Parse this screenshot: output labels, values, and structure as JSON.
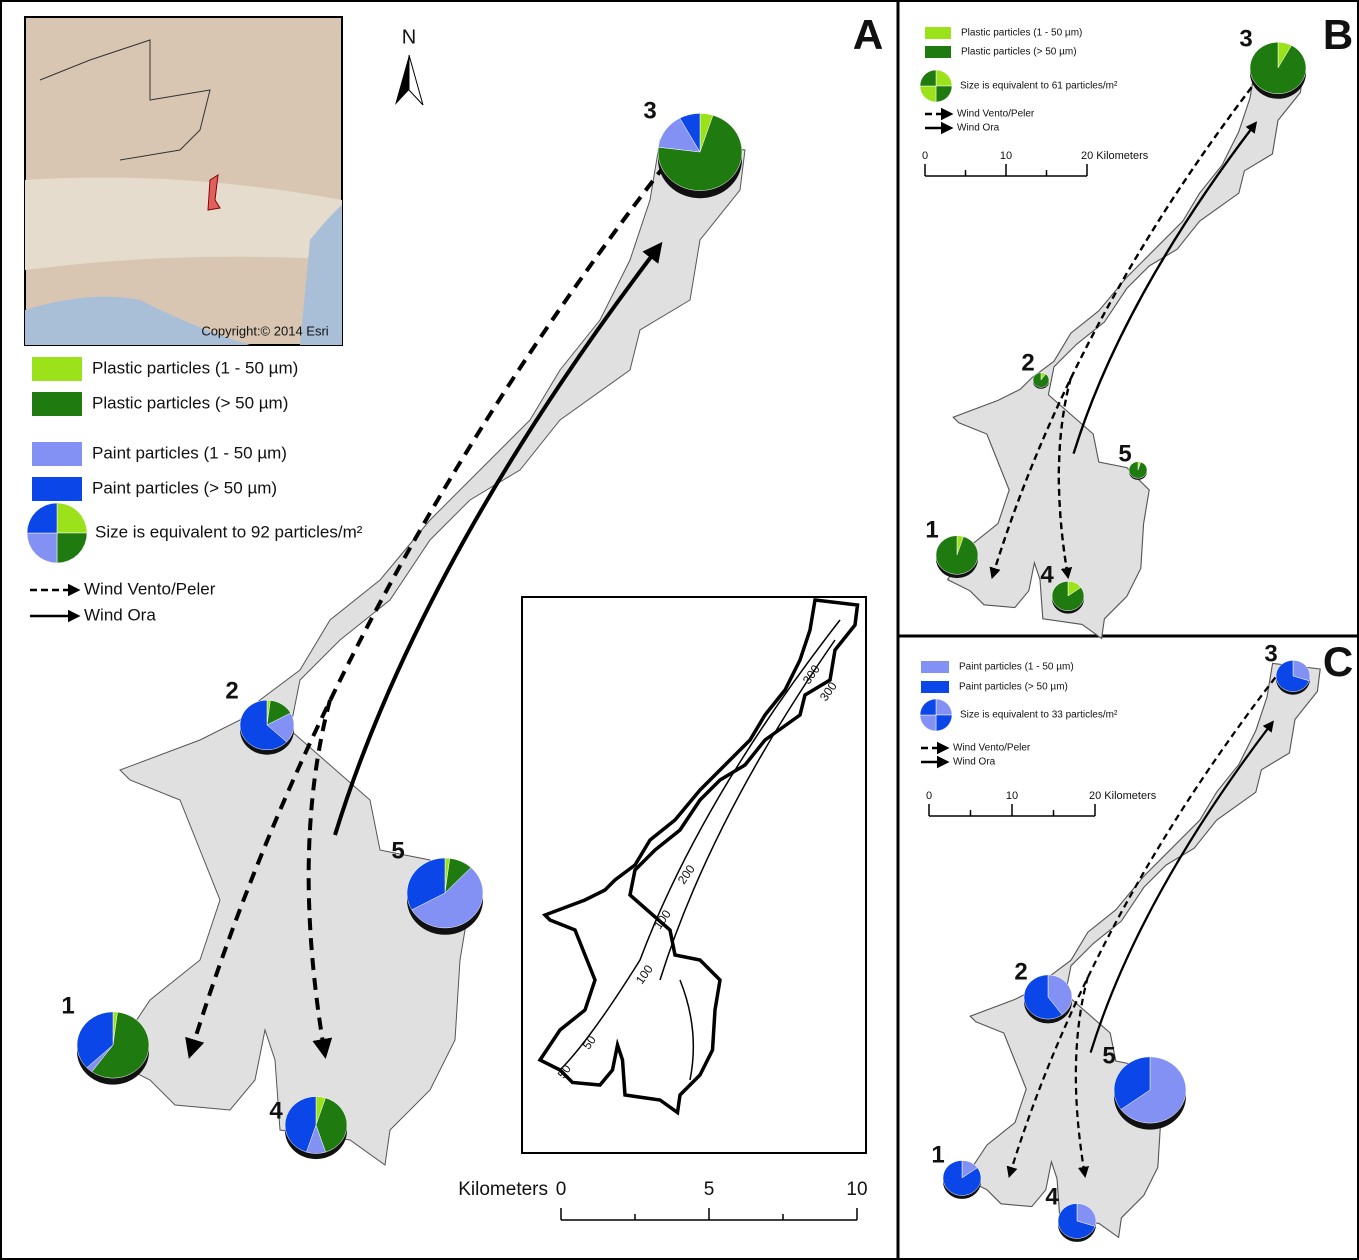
{
  "panel_a": {
    "letter": "A",
    "north": "N",
    "inset_copyright": "Copyright:© 2014 Esri",
    "legend": [
      {
        "label": "Plastic particles (1 - 50 µm)",
        "color": "#9be21a"
      },
      {
        "label": "Plastic particles (> 50 µm)",
        "color": "#1f7a10"
      },
      {
        "label": "Paint particles (1 - 50 µm)",
        "color": "#8391f5"
      },
      {
        "label": "Paint particles (> 50 µm)",
        "color": "#0b47e8"
      }
    ],
    "size_note": "Size is equivalent to 92 particles/m²",
    "wind": [
      "Wind Vento/Peler",
      "Wind Ora"
    ],
    "sites": [
      {
        "label": "1",
        "values": [
          2,
          58,
          3,
          37
        ]
      },
      {
        "label": "2",
        "values": [
          2,
          15,
          20,
          63
        ]
      },
      {
        "label": "3",
        "values": [
          5,
          72,
          15,
          8
        ]
      },
      {
        "label": "4",
        "values": [
          5,
          40,
          10,
          45
        ]
      },
      {
        "label": "5",
        "values": [
          2,
          10,
          55,
          33
        ]
      }
    ],
    "scale_title": "Kilometers",
    "scale_ticks": [
      "0",
      "5",
      "10"
    ],
    "contours": [
      "300",
      "300",
      "200",
      "100",
      "100",
      "50",
      "50"
    ]
  },
  "panel_b": {
    "letter": "B",
    "legend": [
      {
        "label": "Plastic particles (1 - 50 µm)",
        "color": "#9be21a"
      },
      {
        "label": "Plastic particles (> 50 µm)",
        "color": "#1f7a10"
      }
    ],
    "size_note": "Size is equivalent to 61 particles/m²",
    "wind": [
      "Wind Vento/Peler",
      "Wind Ora"
    ],
    "sites": [
      {
        "label": "1",
        "values": [
          5,
          95
        ]
      },
      {
        "label": "2",
        "values": [
          10,
          90
        ]
      },
      {
        "label": "3",
        "values": [
          8,
          92
        ]
      },
      {
        "label": "4",
        "values": [
          15,
          85
        ]
      },
      {
        "label": "5",
        "values": [
          5,
          95
        ]
      }
    ],
    "scale_ticks": [
      "0",
      "10",
      "20 Kilometers"
    ]
  },
  "panel_c": {
    "letter": "C",
    "legend": [
      {
        "label": "Paint particles (1 - 50 µm)",
        "color": "#8391f5"
      },
      {
        "label": "Paint particles (> 50 µm)",
        "color": "#0b47e8"
      }
    ],
    "size_note": "Size is equivalent to 33 particles/m²",
    "wind": [
      "Wind Vento/Peler",
      "Wind Ora"
    ],
    "sites": [
      {
        "label": "1",
        "values": [
          15,
          85
        ]
      },
      {
        "label": "2",
        "values": [
          40,
          60
        ]
      },
      {
        "label": "3",
        "values": [
          30,
          70
        ]
      },
      {
        "label": "4",
        "values": [
          30,
          70
        ]
      },
      {
        "label": "5",
        "values": [
          65,
          35
        ]
      }
    ],
    "scale_ticks": [
      "0",
      "10",
      "20 Kilometers"
    ]
  }
}
